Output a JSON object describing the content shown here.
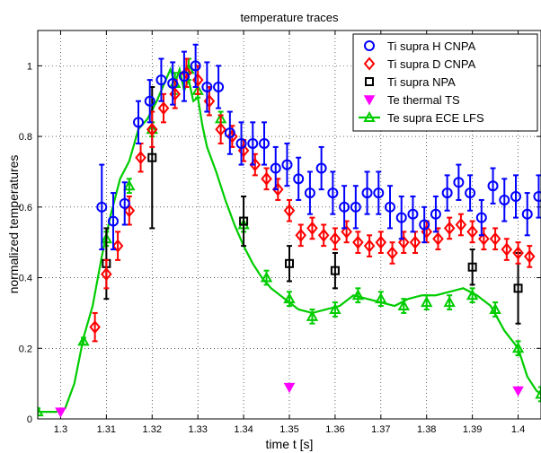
{
  "chart_data": {
    "type": "scatter",
    "title": "temperature traces",
    "xlabel": "time t [s]",
    "ylabel": "normalized temperatures",
    "xlim": [
      1.295,
      1.405
    ],
    "ylim": [
      0,
      1.1
    ],
    "xticks": [
      1.3,
      1.31,
      1.32,
      1.33,
      1.34,
      1.35,
      1.36,
      1.37,
      1.38,
      1.39,
      1.4
    ],
    "xtick_labels": [
      "1.3",
      "1.31",
      "1.32",
      "1.33",
      "1.34",
      "1.35",
      "1.36",
      "1.37",
      "1.38",
      "1.39",
      "1.4"
    ],
    "yticks": [
      0,
      0.2,
      0.4,
      0.6,
      0.8,
      1
    ],
    "ytick_labels": [
      "0",
      "0.2",
      "0.4",
      "0.6",
      "0.8",
      "1"
    ],
    "grid": true,
    "legend_position": "top-right",
    "series": [
      {
        "name": "Ti supra H CNPA",
        "marker": "circle",
        "color": "#0000ff",
        "x": [
          1.309,
          1.3115,
          1.314,
          1.317,
          1.3195,
          1.322,
          1.3245,
          1.327,
          1.3295,
          1.332,
          1.3345,
          1.337,
          1.3395,
          1.342,
          1.3445,
          1.347,
          1.3495,
          1.352,
          1.3545,
          1.357,
          1.3595,
          1.362,
          1.3645,
          1.367,
          1.3695,
          1.372,
          1.3745,
          1.377,
          1.3795,
          1.382,
          1.3845,
          1.387,
          1.3895,
          1.392,
          1.3945,
          1.397,
          1.3995,
          1.402,
          1.4045
        ],
        "y": [
          0.6,
          0.56,
          0.61,
          0.84,
          0.9,
          0.96,
          0.95,
          0.97,
          1.0,
          0.94,
          0.94,
          0.81,
          0.78,
          0.78,
          0.78,
          0.71,
          0.72,
          0.68,
          0.64,
          0.71,
          0.64,
          0.6,
          0.6,
          0.64,
          0.64,
          0.6,
          0.57,
          0.58,
          0.55,
          0.58,
          0.64,
          0.67,
          0.64,
          0.57,
          0.66,
          0.62,
          0.63,
          0.58,
          0.63
        ],
        "err": [
          0.12,
          0.08,
          0.06,
          0.06,
          0.06,
          0.06,
          0.06,
          0.07,
          0.06,
          0.07,
          0.06,
          0.06,
          0.06,
          0.06,
          0.06,
          0.06,
          0.06,
          0.06,
          0.06,
          0.06,
          0.06,
          0.06,
          0.06,
          0.06,
          0.06,
          0.06,
          0.06,
          0.05,
          0.05,
          0.05,
          0.05,
          0.05,
          0.05,
          0.05,
          0.05,
          0.06,
          0.06,
          0.06,
          0.06
        ]
      },
      {
        "name": "Ti supra D CNPA",
        "marker": "diamond",
        "color": "#ff0000",
        "x": [
          1.3075,
          1.31,
          1.3125,
          1.315,
          1.3175,
          1.32,
          1.3225,
          1.325,
          1.3275,
          1.33,
          1.3325,
          1.335,
          1.3375,
          1.34,
          1.3425,
          1.345,
          1.3475,
          1.35,
          1.3525,
          1.355,
          1.3575,
          1.36,
          1.3625,
          1.365,
          1.3675,
          1.37,
          1.3725,
          1.375,
          1.3775,
          1.38,
          1.3825,
          1.385,
          1.3875,
          1.39,
          1.3925,
          1.395,
          1.3975,
          1.4,
          1.4025
        ],
        "y": [
          0.26,
          0.41,
          0.49,
          0.59,
          0.74,
          0.82,
          0.88,
          0.92,
          0.98,
          0.96,
          0.9,
          0.82,
          0.8,
          0.76,
          0.72,
          0.68,
          0.65,
          0.59,
          0.52,
          0.54,
          0.52,
          0.51,
          0.53,
          0.5,
          0.49,
          0.5,
          0.47,
          0.5,
          0.5,
          0.53,
          0.51,
          0.54,
          0.55,
          0.53,
          0.51,
          0.51,
          0.48,
          0.47,
          0.46
        ],
        "err": [
          0.04,
          0.04,
          0.04,
          0.04,
          0.04,
          0.05,
          0.04,
          0.04,
          0.04,
          0.04,
          0.04,
          0.04,
          0.03,
          0.03,
          0.03,
          0.03,
          0.03,
          0.03,
          0.03,
          0.03,
          0.03,
          0.03,
          0.03,
          0.03,
          0.03,
          0.03,
          0.03,
          0.03,
          0.03,
          0.03,
          0.03,
          0.03,
          0.03,
          0.03,
          0.03,
          0.03,
          0.03,
          0.03,
          0.03
        ]
      },
      {
        "name": "Ti supra NPA",
        "marker": "square",
        "color": "#000000",
        "x": [
          1.31,
          1.32,
          1.34,
          1.35,
          1.36,
          1.39,
          1.4
        ],
        "y": [
          0.44,
          0.74,
          0.56,
          0.44,
          0.42,
          0.43,
          0.37
        ],
        "err": [
          0.1,
          0.2,
          0.07,
          0.05,
          0.05,
          0.05,
          0.1
        ]
      },
      {
        "name": "Te thermal TS",
        "marker": "triangle-down",
        "color": "#ff00ff",
        "x": [
          1.3,
          1.35,
          1.4
        ],
        "y": [
          0.02,
          0.09,
          0.08
        ]
      },
      {
        "name": "Te supra ECE LFS",
        "marker": "triangle-up",
        "color": "#00cc00",
        "line": true,
        "x": [
          1.295,
          1.297,
          1.299,
          1.301,
          1.303,
          1.305,
          1.307,
          1.309,
          1.311,
          1.313,
          1.315,
          1.317,
          1.319,
          1.321,
          1.323,
          1.324,
          1.325,
          1.326,
          1.327,
          1.328,
          1.329,
          1.33,
          1.331,
          1.332,
          1.334,
          1.336,
          1.338,
          1.34,
          1.342,
          1.344,
          1.346,
          1.348,
          1.35,
          1.352,
          1.355,
          1.358,
          1.361,
          1.364,
          1.367,
          1.37,
          1.373,
          1.376,
          1.379,
          1.382,
          1.385,
          1.388,
          1.391,
          1.394,
          1.397,
          1.4,
          1.402,
          1.404,
          1.405
        ],
        "y": [
          0.02,
          0.02,
          0.02,
          0.03,
          0.1,
          0.23,
          0.32,
          0.46,
          0.58,
          0.68,
          0.73,
          0.82,
          0.85,
          0.9,
          0.96,
          0.99,
          0.95,
          0.99,
          0.93,
          0.96,
          0.9,
          0.91,
          0.83,
          0.77,
          0.7,
          0.62,
          0.55,
          0.49,
          0.44,
          0.4,
          0.37,
          0.35,
          0.33,
          0.31,
          0.3,
          0.31,
          0.32,
          0.35,
          0.34,
          0.33,
          0.32,
          0.34,
          0.35,
          0.35,
          0.36,
          0.37,
          0.35,
          0.32,
          0.25,
          0.2,
          0.12,
          0.08,
          0.07
        ],
        "marker_x": [
          1.295,
          1.305,
          1.31,
          1.315,
          1.32,
          1.325,
          1.328,
          1.33,
          1.335,
          1.34,
          1.345,
          1.35,
          1.355,
          1.36,
          1.365,
          1.37,
          1.375,
          1.38,
          1.385,
          1.39,
          1.395,
          1.4,
          1.405
        ],
        "marker_y": [
          0.02,
          0.22,
          0.51,
          0.66,
          0.82,
          0.95,
          0.99,
          0.93,
          0.85,
          0.55,
          0.4,
          0.34,
          0.29,
          0.31,
          0.35,
          0.34,
          0.32,
          0.33,
          0.33,
          0.35,
          0.31,
          0.2,
          0.07
        ],
        "marker_err": [
          0.01,
          0.01,
          0.02,
          0.02,
          0.02,
          0.03,
          0.03,
          0.02,
          0.02,
          0.02,
          0.02,
          0.02,
          0.02,
          0.02,
          0.02,
          0.02,
          0.02,
          0.02,
          0.02,
          0.02,
          0.02,
          0.02,
          0.02
        ]
      }
    ]
  }
}
